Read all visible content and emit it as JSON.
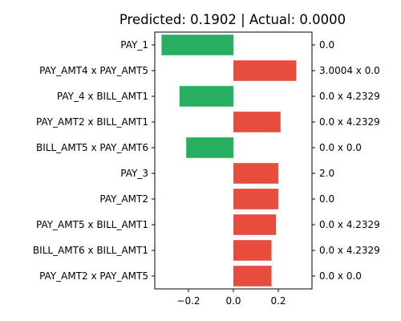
{
  "chart_data": {
    "type": "bar",
    "orientation": "horizontal",
    "title": "Predicted: 0.1902 | Actual: 0.0000",
    "xlabel": "",
    "ylabel": "",
    "xlim": [
      -0.35,
      0.35
    ],
    "xticks": [
      -0.2,
      0.0,
      0.2
    ],
    "xtick_labels": [
      "−0.2",
      "0.0",
      "0.2"
    ],
    "grid": false,
    "categories": [
      "PAY_1",
      "PAY_AMT4 x PAY_AMT5",
      "PAY_4 x BILL_AMT1",
      "PAY_AMT2 x BILL_AMT1",
      "BILL_AMT5 x PAY_AMT6",
      "PAY_3",
      "PAY_AMT2",
      "PAY_AMT5 x BILL_AMT1",
      "BILL_AMT6 x BILL_AMT1",
      "PAY_AMT2 x PAY_AMT5"
    ],
    "values": [
      -0.32,
      0.28,
      -0.24,
      0.21,
      -0.21,
      0.2,
      0.2,
      0.19,
      0.17,
      0.17
    ],
    "right_labels": [
      "0.0",
      "3.0004 x 0.0",
      "0.0 x 4.2329",
      "0.0 x 4.2329",
      "0.0 x 0.0",
      "2.0",
      "0.0",
      "0.0 x 4.2329",
      "0.0 x 4.2329",
      "0.0 x 0.0"
    ],
    "colors": {
      "positive": "#e74c3c",
      "negative": "#27ae60"
    }
  }
}
